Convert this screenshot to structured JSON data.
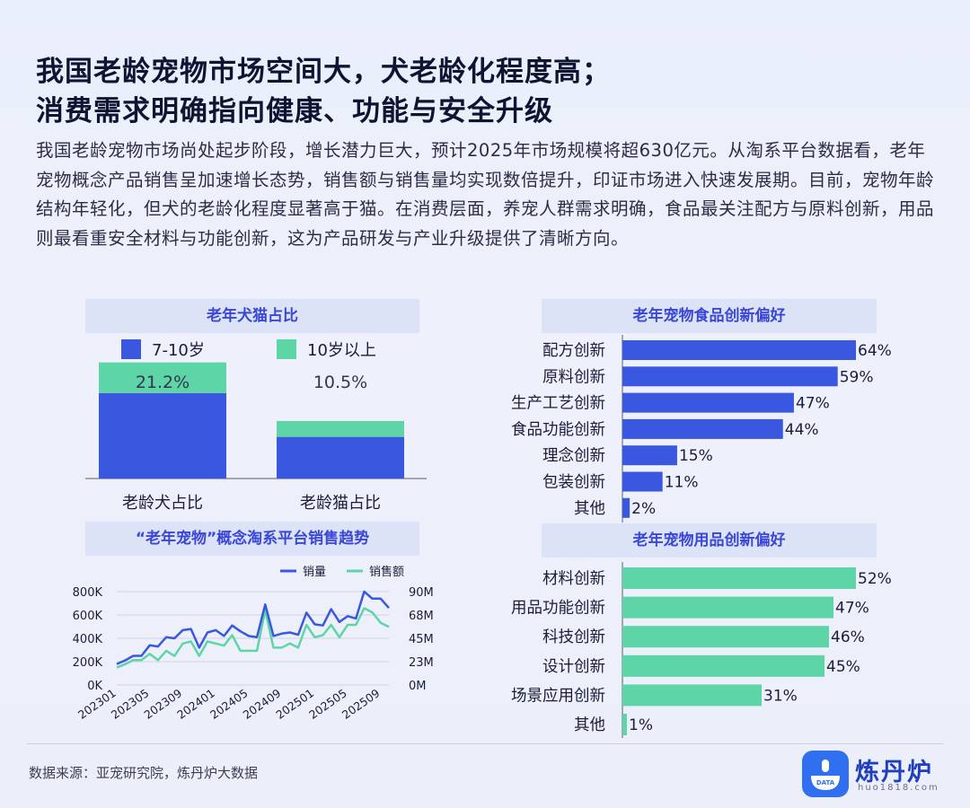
{
  "title_line1": "我国老龄宠物市场空间大，犬老龄化程度高；",
  "title_line2": "消费需求明确指向健康、功能与安全升级",
  "intro": "我国老龄宠物市场尚处起步阶段，增长潜力巨大，预计2025年市场规模将超630亿元。从淘系平台数据看，老年宠物概念产品销售呈加速增长态势，销售额与销售量均实现数倍提升，印证市场进入快速发展期。目前，宠物年龄结构年轻化，但犬的老龄化程度显著高于猫。在消费层面，养宠人群需求明确，食品最关注配方与原料创新，用品则最看重安全材料与功能创新，这为产品研发与产业升级提供了清晰方向。",
  "panels": {
    "ratio_title": "老年犬猫占比",
    "trend_title": "“老年宠物”概念淘系平台销售趋势",
    "food_title": "老年宠物食品创新偏好",
    "supplies_title": "老年宠物用品创新偏好"
  },
  "source": "数据来源：亚宠研究院，炼丹炉大数据",
  "logo": {
    "name": "炼丹炉",
    "sub": "huo1818.com",
    "badge": "DATA"
  },
  "colors": {
    "blue": "#3a57e0",
    "green": "#5dd5a7",
    "panel": "#dde3f7"
  },
  "chart_data": [
    {
      "type": "bar",
      "stacked": true,
      "categories": [
        "老龄犬占比",
        "老龄猫占比"
      ],
      "series": [
        {
          "name": "7-10岁",
          "values": [
            15.6,
            7.6
          ]
        },
        {
          "name": "10岁以上",
          "values": [
            5.6,
            2.9
          ]
        }
      ],
      "totals": [
        "21.2%",
        "10.5%"
      ],
      "legend": "top"
    },
    {
      "type": "line",
      "x": [
        "202301",
        "202302",
        "202303",
        "202304",
        "202305",
        "202306",
        "202307",
        "202308",
        "202309",
        "202310",
        "202311",
        "202312",
        "202401",
        "202402",
        "202403",
        "202404",
        "202405",
        "202406",
        "202407",
        "202408",
        "202409",
        "202410",
        "202411",
        "202412",
        "202501",
        "202502",
        "202503",
        "202504",
        "202505",
        "202506",
        "202507",
        "202508",
        "202509",
        "202510"
      ],
      "xticks": [
        "202301",
        "202305",
        "202309",
        "202401",
        "202405",
        "202409",
        "202501",
        "202505",
        "202509"
      ],
      "series": [
        {
          "name": "销量",
          "axis": "left",
          "values": [
            180,
            210,
            250,
            250,
            340,
            330,
            410,
            400,
            470,
            480,
            320,
            450,
            470,
            420,
            510,
            460,
            420,
            410,
            690,
            420,
            440,
            450,
            430,
            620,
            520,
            510,
            650,
            540,
            590,
            570,
            800,
            740,
            740,
            660
          ]
        },
        {
          "name": "销售额",
          "axis": "right",
          "values": [
            17,
            20,
            24,
            24,
            30,
            24,
            33,
            28,
            40,
            42,
            28,
            42,
            40,
            38,
            48,
            33,
            33,
            33,
            72,
            36,
            36,
            40,
            36,
            58,
            46,
            48,
            58,
            46,
            58,
            58,
            74,
            70,
            60,
            56
          ]
        }
      ],
      "y_left": {
        "ticks": [
          "0K",
          "200K",
          "400K",
          "600K",
          "800K"
        ],
        "range": [
          0,
          800
        ]
      },
      "y_right": {
        "ticks": [
          "0M",
          "23M",
          "45M",
          "68M",
          "90M"
        ],
        "range": [
          0,
          90
        ]
      },
      "legend": "top-right"
    },
    {
      "type": "bar",
      "orientation": "horizontal",
      "categories": [
        "配方创新",
        "原料创新",
        "生产工艺创新",
        "食品功能创新",
        "理念创新",
        "包装创新",
        "其他"
      ],
      "values": [
        64,
        59,
        47,
        44,
        15,
        11,
        2
      ],
      "labels": [
        "64%",
        "59%",
        "47%",
        "44%",
        "15%",
        "11%",
        "2%"
      ],
      "xlim": [
        0,
        64
      ]
    },
    {
      "type": "bar",
      "orientation": "horizontal",
      "categories": [
        "材料创新",
        "用品功能创新",
        "科技创新",
        "设计创新",
        "场景应用创新",
        "其他"
      ],
      "values": [
        52,
        47,
        46,
        45,
        31,
        1
      ],
      "labels": [
        "52%",
        "47%",
        "46%",
        "45%",
        "31%",
        "1%"
      ],
      "xlim": [
        0,
        52
      ]
    }
  ]
}
